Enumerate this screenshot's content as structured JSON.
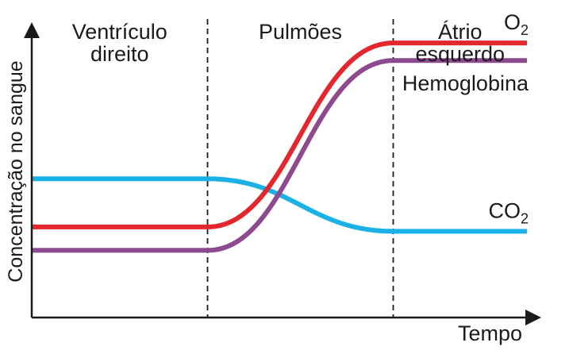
{
  "chart_data": {
    "type": "line",
    "xlabel": "Tempo",
    "ylabel": "Concentração no sangue",
    "xlim": [
      0,
      10
    ],
    "ylim": [
      0,
      10
    ],
    "grid": false,
    "regions": [
      {
        "label_lines": [
          "Ventrículo",
          "direito"
        ],
        "x_start": 0,
        "x_end": 3.55
      },
      {
        "label_lines": [
          "Pulmões"
        ],
        "x_start": 3.55,
        "x_end": 7.3
      },
      {
        "label_lines": [
          "Átrio",
          "esquerdo"
        ],
        "x_start": 7.3,
        "x_end": 10
      }
    ],
    "region_boundaries": [
      3.55,
      7.3
    ],
    "series": [
      {
        "name": "O2",
        "label_main": "O",
        "label_sub": "2",
        "color": "#e4262d",
        "x": [
          0,
          3.55,
          7.3,
          10
        ],
        "y": [
          3.1,
          3.1,
          9.4,
          9.4
        ]
      },
      {
        "name": "Hemoglobina",
        "label_main": "Hemoglobina",
        "color": "#8e4a8e",
        "x": [
          0,
          3.55,
          7.3,
          10
        ],
        "y": [
          2.3,
          2.3,
          8.8,
          8.8
        ]
      },
      {
        "name": "CO2",
        "label_main": "CO",
        "label_sub": "2",
        "color": "#1ab1e6",
        "x": [
          0,
          3.55,
          7.3,
          10
        ],
        "y": [
          4.75,
          4.75,
          2.95,
          2.95
        ]
      }
    ]
  }
}
